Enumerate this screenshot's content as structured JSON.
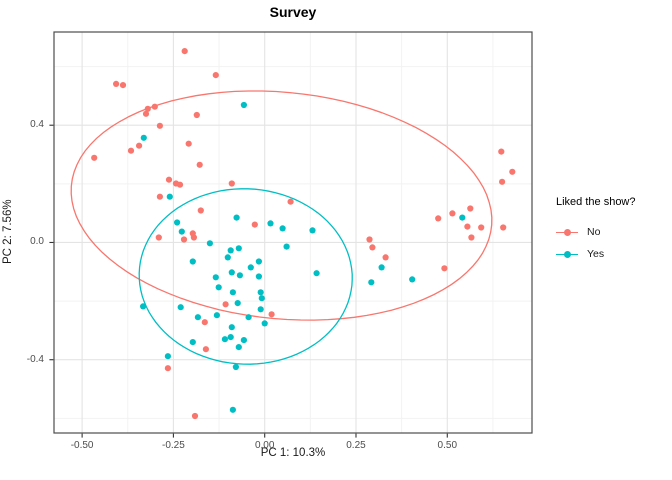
{
  "chart_data": {
    "type": "scatter",
    "title": "Survey",
    "xlabel": "PC 1: 10.3%",
    "ylabel": "PC 2: 7.56%",
    "xlim": [
      -0.577,
      0.732
    ],
    "ylim": [
      -0.65,
      0.718
    ],
    "grid": true,
    "legend_title": "Liked the show?",
    "legend_position": "right",
    "x_ticks": [
      {
        "v": -0.5,
        "label": "-0.50"
      },
      {
        "v": -0.25,
        "label": "-0.25"
      },
      {
        "v": 0.0,
        "label": "0.00"
      },
      {
        "v": 0.25,
        "label": "0.25"
      },
      {
        "v": 0.5,
        "label": "0.50"
      }
    ],
    "y_ticks": [
      {
        "v": -0.4,
        "label": "-0.4"
      },
      {
        "v": 0.0,
        "label": "0.0"
      },
      {
        "v": 0.4,
        "label": "0.4"
      }
    ],
    "x_minor_ticks": [
      -0.375,
      -0.125,
      0.125,
      0.375,
      0.625
    ],
    "y_minor_ticks": [
      -0.6,
      -0.2,
      0.2,
      0.6
    ],
    "series": [
      {
        "name": "No",
        "color": "#F8766D",
        "ellipse": {
          "cx": 0.046,
          "cy": 0.126,
          "a": 0.58,
          "b": 0.385,
          "angle_deg": -9
        },
        "points": [
          [
            -0.219,
            0.653
          ],
          [
            -0.134,
            0.571
          ],
          [
            -0.407,
            0.541
          ],
          [
            -0.388,
            0.537
          ],
          [
            -0.301,
            0.463
          ],
          [
            -0.32,
            0.456
          ],
          [
            -0.325,
            0.439
          ],
          [
            -0.186,
            0.435
          ],
          [
            -0.287,
            0.398
          ],
          [
            -0.344,
            0.33
          ],
          [
            -0.366,
            0.313
          ],
          [
            -0.208,
            0.337
          ],
          [
            -0.467,
            0.289
          ],
          [
            -0.178,
            0.265
          ],
          [
            -0.262,
            0.214
          ],
          [
            -0.243,
            0.201
          ],
          [
            -0.232,
            0.197
          ],
          [
            -0.09,
            0.201
          ],
          [
            0.071,
            0.139
          ],
          [
            -0.287,
            0.156
          ],
          [
            -0.175,
            0.109
          ],
          [
            -0.027,
            0.061
          ],
          [
            -0.197,
            0.031
          ],
          [
            -0.29,
            0.017
          ],
          [
            -0.221,
            0.01
          ],
          [
            -0.194,
            0.017
          ],
          [
            -0.107,
            -0.211
          ],
          [
            0.019,
            -0.245
          ],
          [
            -0.164,
            -0.272
          ],
          [
            -0.161,
            -0.364
          ],
          [
            -0.265,
            -0.429
          ],
          [
            -0.191,
            -0.592
          ],
          [
            0.287,
            0.01
          ],
          [
            0.295,
            -0.017
          ],
          [
            0.331,
            -0.051
          ],
          [
            0.492,
            -0.088
          ],
          [
            0.648,
            0.31
          ],
          [
            0.678,
            0.241
          ],
          [
            0.65,
            0.207
          ],
          [
            0.475,
            0.082
          ],
          [
            0.514,
            0.099
          ],
          [
            0.563,
            0.116
          ],
          [
            0.555,
            0.054
          ],
          [
            0.593,
            0.051
          ],
          [
            0.653,
            0.051
          ],
          [
            0.566,
            0.017
          ]
        ]
      },
      {
        "name": "Yes",
        "color": "#00BFC4",
        "ellipse": {
          "cx": -0.052,
          "cy": -0.116,
          "a": 0.291,
          "b": 0.3,
          "angle_deg": 17
        },
        "points": [
          [
            -0.057,
            0.469
          ],
          [
            -0.331,
            0.357
          ],
          [
            -0.26,
            0.156
          ],
          [
            -0.077,
            0.085
          ],
          [
            0.016,
            0.065
          ],
          [
            0.049,
            0.048
          ],
          [
            0.131,
            0.041
          ],
          [
            -0.24,
            0.068
          ],
          [
            -0.227,
            0.037
          ],
          [
            -0.15,
            -0.003
          ],
          [
            -0.093,
            -0.027
          ],
          [
            -0.071,
            -0.02
          ],
          [
            -0.101,
            -0.051
          ],
          [
            -0.197,
            -0.065
          ],
          [
            -0.016,
            -0.065
          ],
          [
            0.06,
            -0.014
          ],
          [
            0.142,
            -0.105
          ],
          [
            -0.09,
            -0.102
          ],
          [
            -0.068,
            -0.112
          ],
          [
            -0.038,
            -0.085
          ],
          [
            -0.016,
            -0.116
          ],
          [
            -0.134,
            -0.119
          ],
          [
            -0.126,
            -0.153
          ],
          [
            -0.087,
            -0.17
          ],
          [
            -0.011,
            -0.17
          ],
          [
            -0.008,
            -0.19
          ],
          [
            -0.074,
            -0.207
          ],
          [
            -0.011,
            -0.228
          ],
          [
            -0.23,
            -0.221
          ],
          [
            -0.333,
            -0.218
          ],
          [
            -0.183,
            -0.255
          ],
          [
            -0.131,
            -0.248
          ],
          [
            -0.044,
            -0.255
          ],
          [
            0.0,
            -0.276
          ],
          [
            -0.09,
            -0.289
          ],
          [
            -0.109,
            -0.33
          ],
          [
            -0.093,
            -0.323
          ],
          [
            -0.057,
            -0.333
          ],
          [
            -0.071,
            -0.357
          ],
          [
            -0.197,
            -0.34
          ],
          [
            -0.265,
            -0.388
          ],
          [
            -0.079,
            -0.425
          ],
          [
            -0.087,
            -0.571
          ],
          [
            0.32,
            -0.085
          ],
          [
            0.292,
            -0.136
          ],
          [
            0.404,
            -0.126
          ],
          [
            0.541,
            0.085
          ]
        ]
      }
    ],
    "style_colors": {
      "panel_border": "#4d4d4d",
      "grid_major": "#e4e4e4",
      "grid_minor": "#f2f2f2",
      "tick_mark": "#333333",
      "tick_text": "#4d4d4d"
    }
  }
}
